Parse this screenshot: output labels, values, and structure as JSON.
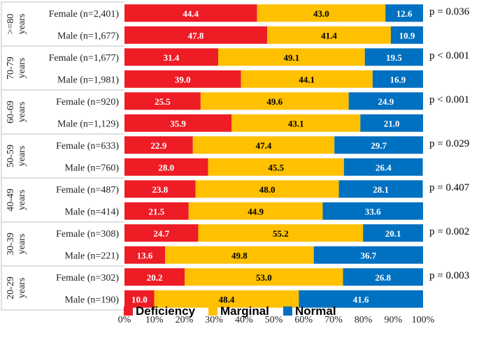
{
  "chart_data": {
    "type": "bar",
    "orientation": "horizontal",
    "stacked": true,
    "xlim": [
      0,
      100
    ],
    "xticks": [
      "0%",
      "10%",
      "20%",
      "30%",
      "40%",
      "50%",
      "60%",
      "70%",
      "80%",
      "90%",
      "100%"
    ],
    "legend_position": "bottom",
    "series": [
      {
        "name": "Deficiency",
        "color": "#ee1c25"
      },
      {
        "name": "Marginal",
        "color": "#ffc000"
      },
      {
        "name": "Normal",
        "color": "#0070c0"
      }
    ],
    "groups": [
      {
        "label": ">=80 years",
        "label_lines": [
          ">=80",
          "years"
        ],
        "p_value": "p = 0.036",
        "rows": [
          {
            "label": "Female (n=2,401)",
            "values": [
              44.4,
              43.0,
              12.6
            ],
            "labels": [
              "44.4",
              "43.0",
              "12.6"
            ]
          },
          {
            "label": "Male (n=1,677)",
            "values": [
              47.8,
              41.4,
              10.9
            ],
            "labels": [
              "47.8",
              "41.4",
              "10.9"
            ]
          }
        ]
      },
      {
        "label": "70-79 years",
        "label_lines": [
          "70-79",
          "years"
        ],
        "p_value": "p < 0.001",
        "rows": [
          {
            "label": "Female (n=1,677)",
            "values": [
              31.4,
              49.1,
              19.5
            ],
            "labels": [
              "31.4",
              "49.1",
              "19.5"
            ]
          },
          {
            "label": "Male (n=1,981)",
            "values": [
              39.0,
              44.1,
              16.9
            ],
            "labels": [
              "39.0",
              "44.1",
              "16.9"
            ]
          }
        ]
      },
      {
        "label": "60-69 years",
        "label_lines": [
          "60-69",
          "years"
        ],
        "p_value": "p < 0.001",
        "rows": [
          {
            "label": "Female (n=920)",
            "values": [
              25.5,
              49.6,
              24.9
            ],
            "labels": [
              "25.5",
              "49.6",
              "24.9"
            ]
          },
          {
            "label": "Male (n=1,129)",
            "values": [
              35.9,
              43.1,
              21.0
            ],
            "labels": [
              "35.9",
              "43.1",
              "21.0"
            ]
          }
        ]
      },
      {
        "label": "50-59 years",
        "label_lines": [
          "50-59",
          "years"
        ],
        "p_value": "p = 0.029",
        "rows": [
          {
            "label": "Female (n=633)",
            "values": [
              22.9,
              47.4,
              29.7
            ],
            "labels": [
              "22.9",
              "47.4",
              "29.7"
            ]
          },
          {
            "label": "Male (n=760)",
            "values": [
              28.0,
              45.5,
              26.4
            ],
            "labels": [
              "28.0",
              "45.5",
              "26.4"
            ]
          }
        ]
      },
      {
        "label": "40-49 years",
        "label_lines": [
          "40-49",
          "years"
        ],
        "p_value": "p = 0.407",
        "rows": [
          {
            "label": "Female (n=487)",
            "values": [
              23.8,
              48.0,
              28.1
            ],
            "labels": [
              "23.8",
              "48.0",
              "28.1"
            ]
          },
          {
            "label": "Male (n=414)",
            "values": [
              21.5,
              44.9,
              33.6
            ],
            "labels": [
              "21.5",
              "44.9",
              "33.6"
            ]
          }
        ]
      },
      {
        "label": "30-39 years",
        "label_lines": [
          "30-39",
          "years"
        ],
        "p_value": "p = 0.002",
        "rows": [
          {
            "label": "Female (n=308)",
            "values": [
              24.7,
              55.2,
              20.1
            ],
            "labels": [
              "24.7",
              "55.2",
              "20.1"
            ]
          },
          {
            "label": "Male (n=221)",
            "values": [
              13.6,
              49.8,
              36.7
            ],
            "labels": [
              "13.6",
              "49.8",
              "36.7"
            ]
          }
        ]
      },
      {
        "label": "20-29 years",
        "label_lines": [
          "20-29",
          "years"
        ],
        "p_value": "p = 0.003",
        "rows": [
          {
            "label": "Female (n=302)",
            "values": [
              20.2,
              53.0,
              26.8
            ],
            "labels": [
              "20.2",
              "53.0",
              "26.8"
            ]
          },
          {
            "label": "Male (n=190)",
            "values": [
              10.0,
              48.4,
              41.6
            ],
            "labels": [
              "10.0",
              "48.4",
              "41.6"
            ]
          }
        ]
      }
    ]
  }
}
